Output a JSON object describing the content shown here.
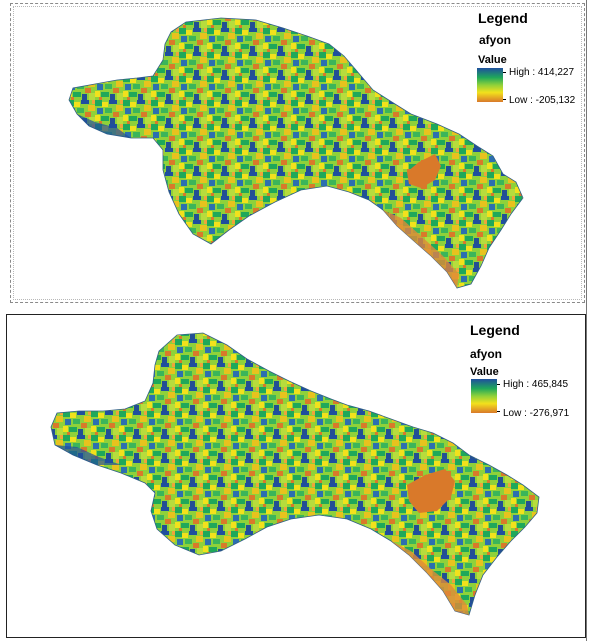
{
  "maps": [
    {
      "legend": {
        "title": "Legend",
        "layer": "afyon",
        "field": "Value",
        "high_label": "High : 414,227",
        "low_label": "Low : -205,132"
      }
    },
    {
      "legend": {
        "title": "Legend",
        "layer": "afyon",
        "field": "Value",
        "high_label": "High : 465,845",
        "low_label": "Low : -276,971"
      }
    }
  ],
  "colors": {
    "ramp_high": "#1f4f9e",
    "ramp_mid_high": "#1fa85a",
    "ramp_mid": "#8fd13a",
    "ramp_mid_low": "#f2e11c",
    "ramp_low": "#d9792a",
    "background": "#ffffff"
  }
}
